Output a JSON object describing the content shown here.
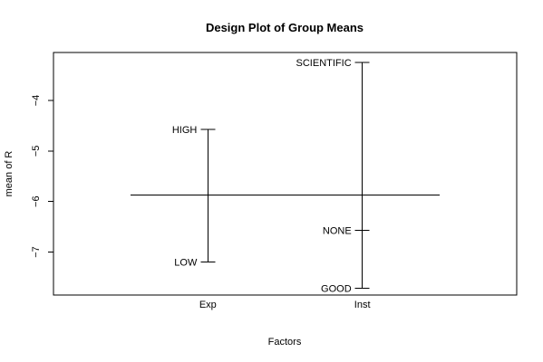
{
  "chart_data": {
    "type": "design-plot",
    "title": "Design Plot of Group Means",
    "xlabel": "Factors",
    "ylabel": "mean of R",
    "ylim": [
      -7.85,
      -3.05
    ],
    "yticks": [
      -7,
      -6,
      -5,
      -4
    ],
    "grand_mean": -5.87,
    "factors": [
      {
        "name": "Exp",
        "levels": [
          {
            "label": "HIGH",
            "value": -4.57
          },
          {
            "label": "LOW",
            "value": -7.2
          }
        ]
      },
      {
        "name": "Inst",
        "levels": [
          {
            "label": "SCIENTIFIC",
            "value": -3.25
          },
          {
            "label": "NONE",
            "value": -6.57
          },
          {
            "label": "GOOD",
            "value": -7.72
          }
        ]
      }
    ]
  }
}
